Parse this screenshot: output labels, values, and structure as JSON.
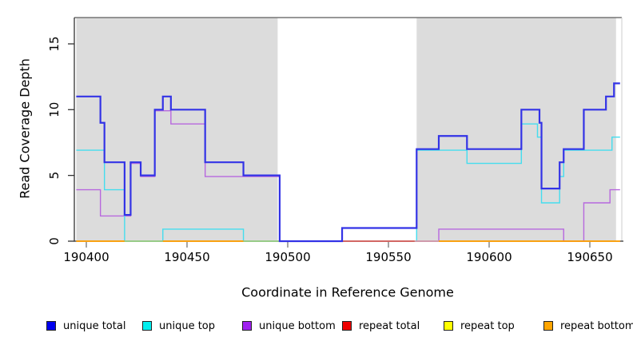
{
  "figure": {
    "x_label": "Coordinate in Reference Genome",
    "y_label": "Read Coverage Depth"
  },
  "legend": {
    "items": [
      {
        "label": "unique total",
        "color": "#0000EE"
      },
      {
        "label": "unique top",
        "color": "#00EEEE"
      },
      {
        "label": "unique bottom",
        "color": "#A020F0"
      },
      {
        "label": "repeat total",
        "color": "#EE0000"
      },
      {
        "label": "repeat top",
        "color": "#FFFF00"
      },
      {
        "label": "repeat bottom",
        "color": "#FFA500"
      }
    ]
  },
  "chart_data": {
    "type": "line",
    "subtype": "step-coverage",
    "title": "",
    "xlabel": "Coordinate in Reference Genome",
    "ylabel": "Read Coverage Depth",
    "xlim": [
      190395,
      190665
    ],
    "ylim": [
      0,
      17
    ],
    "x_ticks": [
      190400,
      190450,
      190500,
      190550,
      190600,
      190650
    ],
    "y_ticks": [
      0,
      5,
      10,
      15
    ],
    "grid": false,
    "legend_position": "bottom",
    "mask_regions": [
      {
        "from": 190395,
        "to": 190495,
        "fill": "#DCDCDC"
      },
      {
        "from": 190564,
        "to": 190663,
        "fill": "#DCDCDC"
      }
    ],
    "series": [
      {
        "name": "unique total",
        "color": "#3333E6",
        "steps": [
          [
            190395,
            11
          ],
          [
            190407,
            9
          ],
          [
            190409,
            6
          ],
          [
            190419,
            2
          ],
          [
            190422,
            6
          ],
          [
            190427,
            5
          ],
          [
            190434,
            10
          ],
          [
            190438,
            11
          ],
          [
            190442,
            10
          ],
          [
            190459,
            6
          ],
          [
            190478,
            5
          ],
          [
            190496,
            0
          ],
          [
            190527,
            1
          ],
          [
            190564,
            7
          ],
          [
            190575,
            8
          ],
          [
            190589,
            7
          ],
          [
            190616,
            10
          ],
          [
            190625,
            9
          ],
          [
            190626,
            4
          ],
          [
            190635,
            6
          ],
          [
            190637,
            7
          ],
          [
            190647,
            10
          ],
          [
            190658,
            11
          ],
          [
            190662,
            12
          ]
        ],
        "end": 190665
      },
      {
        "name": "unique top",
        "color": "#44DDEE",
        "steps": [
          [
            190395,
            7
          ],
          [
            190409,
            4
          ],
          [
            190419,
            0
          ],
          [
            190438,
            1
          ],
          [
            190478,
            0
          ],
          [
            190564,
            7
          ],
          [
            190589,
            6
          ],
          [
            190616,
            9
          ],
          [
            190624,
            8
          ],
          [
            190626,
            3
          ],
          [
            190635,
            5
          ],
          [
            190637,
            7
          ],
          [
            190661,
            8
          ]
        ],
        "end": 190665
      },
      {
        "name": "unique bottom",
        "color": "#B768DE",
        "steps": [
          [
            190395,
            4
          ],
          [
            190407,
            2
          ],
          [
            190422,
            6
          ],
          [
            190427,
            5
          ],
          [
            190434,
            10
          ],
          [
            190442,
            9
          ],
          [
            190459,
            5
          ],
          [
            190496,
            0
          ],
          [
            190575,
            1
          ],
          [
            190637,
            0
          ],
          [
            190647,
            3
          ],
          [
            190660,
            4
          ]
        ],
        "end": 190665
      },
      {
        "name": "repeat total",
        "color": "#EE0000",
        "steps": [
          [
            190395,
            0
          ]
        ],
        "end": 190665
      },
      {
        "name": "repeat top",
        "color": "#FFFF00",
        "steps": [
          [
            190395,
            0
          ]
        ],
        "end": 190665
      },
      {
        "name": "repeat bottom",
        "color": "#FFA500",
        "steps": [
          [
            190395,
            0
          ]
        ],
        "end": 190665
      }
    ],
    "zero_line_visible_segments": [
      {
        "from": 190419,
        "to": 190438,
        "color": "#7FD9A8",
        "series": "unique top"
      },
      {
        "from": 190478,
        "to": 190496,
        "color": "#7FD9A8",
        "series": "unique top"
      },
      {
        "from": 190527,
        "to": 190563,
        "color": "#CC5577",
        "series": "repeat total"
      },
      {
        "from": 190563,
        "to": 190575,
        "color": "#C49BD8",
        "series": "unique bottom"
      }
    ]
  }
}
